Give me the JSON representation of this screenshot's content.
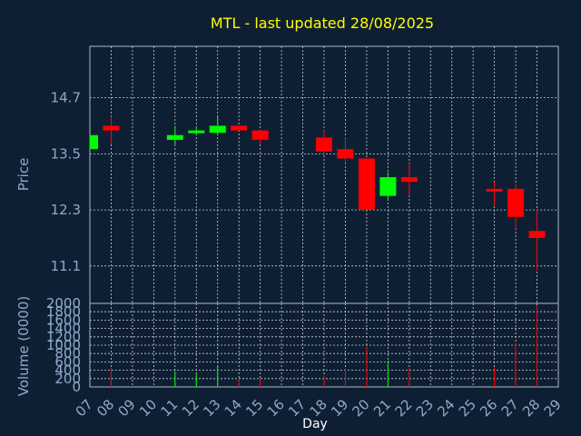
{
  "title": "MTL - last updated 28/08/2025",
  "colors": {
    "background": "#0f1f33",
    "frame": "#aeb8c4",
    "grid": "#c8d0d8",
    "up": "#00ff00",
    "down": "#ff0000",
    "title": "#ffff00",
    "axis_text": "#8fa9c9"
  },
  "chart_data": [
    {
      "type": "candlestick",
      "ylabel": "Price",
      "y_ticks": [
        "14.7",
        "13.5",
        "12.3",
        "11.1"
      ],
      "ylim": [
        10.3,
        15.8
      ],
      "grid": true,
      "days": [
        "07",
        "08",
        "09",
        "10",
        "11",
        "12",
        "13",
        "14",
        "15",
        "16",
        "17",
        "18",
        "19",
        "20",
        "21",
        "22",
        "23",
        "24",
        "25",
        "26",
        "27",
        "28",
        "29"
      ],
      "candles": [
        {
          "day": "07",
          "open": 13.6,
          "close": 13.9,
          "high": 13.9,
          "low": 13.6
        },
        {
          "day": "08",
          "open": 14.1,
          "close": 14.0,
          "high": 14.3,
          "low": 13.7
        },
        {
          "day": "11",
          "open": 13.8,
          "close": 13.9,
          "high": 14.1,
          "low": 13.7
        },
        {
          "day": "12",
          "open": 13.95,
          "close": 14.0,
          "high": 14.05,
          "low": 13.9
        },
        {
          "day": "13",
          "open": 13.95,
          "close": 14.1,
          "high": 14.3,
          "low": 13.9
        },
        {
          "day": "14",
          "open": 14.1,
          "close": 14.0,
          "high": 14.1,
          "low": 14.0
        },
        {
          "day": "15",
          "open": 14.0,
          "close": 13.8,
          "high": 14.0,
          "low": 13.7
        },
        {
          "day": "18",
          "open": 13.85,
          "close": 13.55,
          "high": 14.0,
          "low": 13.5
        },
        {
          "day": "19",
          "open": 13.6,
          "close": 13.4,
          "high": 13.85,
          "low": 13.3
        },
        {
          "day": "20",
          "open": 13.4,
          "close": 12.3,
          "high": 13.4,
          "low": 12.3
        },
        {
          "day": "21",
          "open": 12.6,
          "close": 13.0,
          "high": 13.1,
          "low": 12.5
        },
        {
          "day": "22",
          "open": 13.0,
          "close": 12.9,
          "high": 13.3,
          "low": 12.6
        },
        {
          "day": "26",
          "open": 12.75,
          "close": 12.7,
          "high": 12.9,
          "low": 12.4
        },
        {
          "day": "27",
          "open": 12.75,
          "close": 12.15,
          "high": 12.85,
          "low": 11.9
        },
        {
          "day": "28",
          "open": 11.85,
          "close": 11.7,
          "high": 12.3,
          "low": 11.0
        }
      ]
    },
    {
      "type": "bar",
      "ylabel": "Volume (0000)",
      "xlabel": "Day",
      "y_ticks": [
        "2000",
        "1800",
        "1600",
        "1400",
        "1200",
        "1000",
        "800",
        "600",
        "400",
        "200",
        "0"
      ],
      "ylim": [
        0,
        2000
      ],
      "grid": true,
      "bars": [
        {
          "day": "08",
          "value": 450,
          "direction": "down"
        },
        {
          "day": "11",
          "value": 380,
          "direction": "up"
        },
        {
          "day": "12",
          "value": 330,
          "direction": "up"
        },
        {
          "day": "13",
          "value": 520,
          "direction": "up"
        },
        {
          "day": "14",
          "value": 180,
          "direction": "down"
        },
        {
          "day": "15",
          "value": 200,
          "direction": "down"
        },
        {
          "day": "18",
          "value": 270,
          "direction": "down"
        },
        {
          "day": "19",
          "value": 430,
          "direction": "down"
        },
        {
          "day": "20",
          "value": 950,
          "direction": "down"
        },
        {
          "day": "21",
          "value": 630,
          "direction": "up"
        },
        {
          "day": "22",
          "value": 460,
          "direction": "down"
        },
        {
          "day": "26",
          "value": 470,
          "direction": "down"
        },
        {
          "day": "27",
          "value": 1050,
          "direction": "down"
        },
        {
          "day": "28",
          "value": 1950,
          "direction": "down"
        }
      ]
    }
  ]
}
